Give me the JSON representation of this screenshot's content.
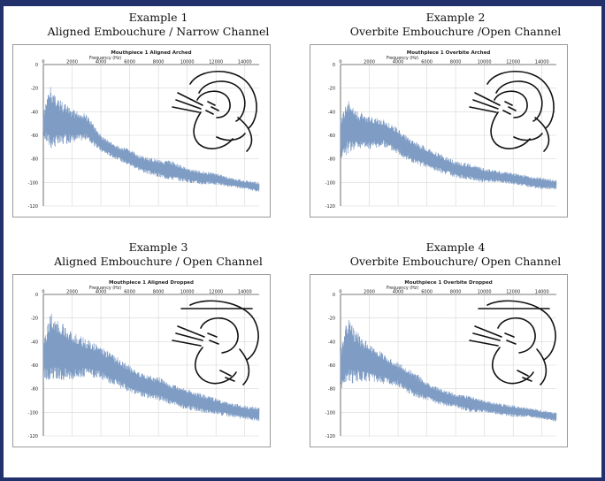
{
  "panels": [
    {
      "title": "Example 1",
      "subtitle": "Aligned Embouchure / Narrow Channel",
      "chart_title": "Mouthpiece 1 Aligned Arched",
      "xlabel": "Frequency (Hz)",
      "drawing": "arched",
      "profile": "p1"
    },
    {
      "title": "Example 2",
      "subtitle": "Overbite Embouchure /Open Channel",
      "chart_title": "Mouthpiece 1 Overbite Arched",
      "xlabel": "Frequency (Hz)",
      "drawing": "arched",
      "profile": "p2"
    },
    {
      "title": "Example 3",
      "subtitle": "Aligned Embouchure / Open Channel",
      "chart_title": "Mouthpiece 1 Aligned Dropped",
      "xlabel": "Frequency (Hz)",
      "drawing": "dropped",
      "profile": "p3"
    },
    {
      "title": "Example 4",
      "subtitle": "Overbite Embouchure/ Open Channel",
      "chart_title": "Mouthpiece 1 Overbite Dropped",
      "xlabel": "Frequency (Hz)",
      "drawing": "dropped",
      "profile": "p4"
    }
  ],
  "chart_data": [
    {
      "type": "line",
      "title": "Mouthpiece 1 Aligned Arched",
      "xlabel": "Frequency (Hz)",
      "ylabel": "",
      "xlim": [
        0,
        15000
      ],
      "ylim": [
        -120,
        0
      ],
      "x_ticks": [
        "0",
        "2000",
        "4000",
        "6000",
        "8000",
        "10000",
        "12000",
        "14000"
      ],
      "y_ticks": [
        "0",
        "-20",
        "-40",
        "-60",
        "-80",
        "-100",
        "-120"
      ],
      "grid": true,
      "color": "#7e9cc4",
      "envelope_x": [
        0,
        500,
        1000,
        2000,
        3000,
        4000,
        5000,
        6000,
        7000,
        8000,
        9000,
        10000,
        11000,
        12000,
        13000,
        14000,
        15000
      ],
      "envelope_top": [
        -40,
        -18,
        -28,
        -38,
        -42,
        -60,
        -68,
        -72,
        -78,
        -80,
        -82,
        -88,
        -90,
        -92,
        -96,
        -98,
        -100
      ],
      "envelope_bottom": [
        -62,
        -72,
        -70,
        -66,
        -64,
        -74,
        -80,
        -86,
        -92,
        -96,
        -98,
        -100,
        -102,
        -102,
        -104,
        -106,
        -108
      ]
    },
    {
      "type": "line",
      "title": "Mouthpiece 1 Overbite Arched",
      "xlabel": "Frequency (Hz)",
      "ylabel": "",
      "xlim": [
        0,
        15000
      ],
      "ylim": [
        -120,
        0
      ],
      "x_ticks": [
        "0",
        "2000",
        "4000",
        "6000",
        "8000",
        "10000",
        "12000",
        "14000"
      ],
      "y_ticks": [
        "0",
        "-20",
        "-40",
        "-60",
        "-80",
        "-100",
        "-120"
      ],
      "grid": true,
      "color": "#7e9cc4",
      "envelope_x": [
        0,
        500,
        1000,
        2000,
        3000,
        4000,
        5000,
        6000,
        7000,
        8000,
        9000,
        10000,
        11000,
        12000,
        13000,
        14000,
        15000
      ],
      "envelope_top": [
        -45,
        -30,
        -38,
        -44,
        -46,
        -54,
        -64,
        -70,
        -76,
        -82,
        -84,
        -88,
        -90,
        -92,
        -94,
        -96,
        -98
      ],
      "envelope_bottom": [
        -80,
        -76,
        -72,
        -72,
        -70,
        -76,
        -84,
        -88,
        -92,
        -96,
        -98,
        -100,
        -100,
        -102,
        -104,
        -106,
        -106
      ]
    },
    {
      "type": "line",
      "title": "Mouthpiece 1 Aligned Dropped",
      "xlabel": "Frequency (Hz)",
      "ylabel": "",
      "xlim": [
        0,
        15000
      ],
      "ylim": [
        -120,
        0
      ],
      "x_ticks": [
        "0",
        "2000",
        "4000",
        "6000",
        "8000",
        "10000",
        "12000",
        "14000"
      ],
      "y_ticks": [
        "0",
        "-20",
        "-40",
        "-60",
        "-80",
        "-100",
        "-120"
      ],
      "grid": true,
      "color": "#7e9cc4",
      "envelope_x": [
        0,
        500,
        1000,
        2000,
        3000,
        4000,
        5000,
        6000,
        7000,
        8000,
        9000,
        10000,
        11000,
        12000,
        13000,
        14000,
        15000
      ],
      "envelope_top": [
        -40,
        -15,
        -22,
        -30,
        -38,
        -44,
        -52,
        -60,
        -68,
        -70,
        -76,
        -80,
        -84,
        -88,
        -92,
        -94,
        -96
      ],
      "envelope_bottom": [
        -70,
        -76,
        -74,
        -72,
        -70,
        -72,
        -78,
        -84,
        -88,
        -90,
        -94,
        -98,
        -100,
        -102,
        -104,
        -106,
        -108
      ]
    },
    {
      "type": "line",
      "title": "Mouthpiece 1 Overbite Dropped",
      "xlabel": "Frequency (Hz)",
      "ylabel": "",
      "xlim": [
        0,
        15000
      ],
      "ylim": [
        -120,
        0
      ],
      "x_ticks": [
        "0",
        "2000",
        "4000",
        "6000",
        "8000",
        "10000",
        "12000",
        "14000"
      ],
      "y_ticks": [
        "0",
        "-20",
        "-40",
        "-60",
        "-80",
        "-100",
        "-120"
      ],
      "grid": true,
      "color": "#7e9cc4",
      "envelope_x": [
        0,
        500,
        1000,
        2000,
        3000,
        4000,
        5000,
        6000,
        7000,
        8000,
        9000,
        10000,
        11000,
        12000,
        13000,
        14000,
        15000
      ],
      "envelope_top": [
        -45,
        -20,
        -30,
        -42,
        -50,
        -58,
        -64,
        -74,
        -80,
        -84,
        -86,
        -90,
        -92,
        -94,
        -96,
        -98,
        -100
      ],
      "envelope_bottom": [
        -80,
        -78,
        -74,
        -74,
        -76,
        -78,
        -86,
        -90,
        -94,
        -96,
        -100,
        -100,
        -102,
        -104,
        -104,
        -106,
        -108
      ]
    }
  ]
}
